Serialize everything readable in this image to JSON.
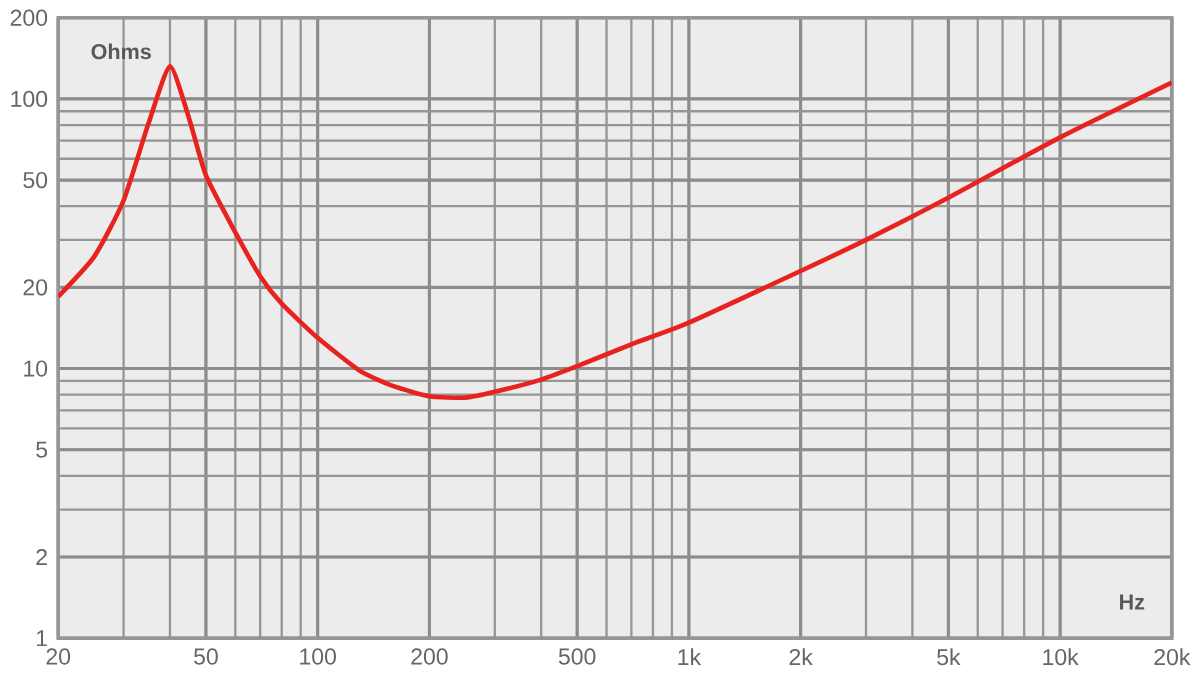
{
  "chart_data": {
    "type": "line",
    "xlabel": "Hz",
    "ylabel": "Ohms",
    "log": "xy",
    "grid": true,
    "x": [
      20,
      25,
      30,
      35,
      40,
      45,
      50,
      60,
      70,
      80,
      100,
      130,
      160,
      200,
      250,
      300,
      400,
      500,
      700,
      1000,
      2000,
      3000,
      5000,
      10000,
      20000
    ],
    "series": [
      {
        "color": "#e8231f",
        "values": [
          18.5,
          26,
          42,
          81,
          132,
          85,
          52,
          32,
          22,
          17.4,
          13,
          9.8,
          8.6,
          7.9,
          7.8,
          8.2,
          9.1,
          10.2,
          12.3,
          14.8,
          23,
          30,
          43,
          72,
          115
        ]
      }
    ],
    "xlim": [
      20,
      20000
    ],
    "ylim": [
      1,
      200
    ],
    "xticks": [
      20,
      50,
      100,
      200,
      500,
      {
        "value": 1000,
        "label": "1k"
      },
      {
        "value": 2000,
        "label": "2k"
      },
      {
        "value": 5000,
        "label": "5k"
      },
      {
        "value": 10000,
        "label": "10k"
      },
      {
        "value": 20000,
        "label": "20k"
      }
    ],
    "yticks": [
      1,
      2,
      5,
      10,
      20,
      50,
      100,
      200
    ]
  }
}
